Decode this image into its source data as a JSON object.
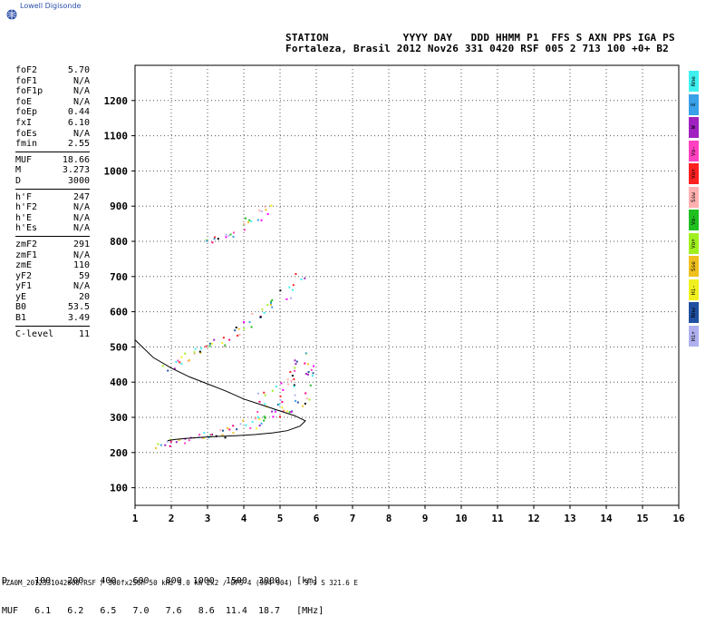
{
  "header": {
    "brand": "Lowell Digisonde",
    "line1": "STATION            YYYY DAY   DDD HHMM P1  FFS S AXN PPS IGA PS",
    "line2": "Fortaleza, Brasil 2012 Nov26 331 0420 RSF 005 2 713 100 +0+ B2"
  },
  "params": {
    "group1": [
      {
        "k": "foF2",
        "v": "5.70"
      },
      {
        "k": "foF1",
        "v": "N/A"
      },
      {
        "k": "foF1p",
        "v": "N/A"
      },
      {
        "k": "foE",
        "v": "N/A"
      },
      {
        "k": "foEp",
        "v": "0.44"
      },
      {
        "k": "fxI",
        "v": "6.10"
      },
      {
        "k": "foEs",
        "v": "N/A"
      },
      {
        "k": "fmin",
        "v": "2.55"
      }
    ],
    "group2": [
      {
        "k": "MUF",
        "v": "18.66"
      },
      {
        "k": "M",
        "v": "3.273"
      },
      {
        "k": "D",
        "v": "3000"
      }
    ],
    "group3": [
      {
        "k": "h'F",
        "v": "247"
      },
      {
        "k": "h'F2",
        "v": "N/A"
      },
      {
        "k": "h'E",
        "v": "N/A"
      },
      {
        "k": "h'Es",
        "v": "N/A"
      }
    ],
    "group4": [
      {
        "k": "zmF2",
        "v": "291"
      },
      {
        "k": "zmF1",
        "v": "N/A"
      },
      {
        "k": "zmE",
        "v": "110"
      },
      {
        "k": "yF2",
        "v": "59"
      },
      {
        "k": "yF1",
        "v": "N/A"
      },
      {
        "k": "yE",
        "v": "20"
      },
      {
        "k": "B0",
        "v": "53.5"
      },
      {
        "k": "B1",
        "v": "3.49"
      }
    ],
    "group5": [
      {
        "k": "C-level",
        "v": "11"
      }
    ]
  },
  "legend": [
    {
      "label": "Nne",
      "color": "#3ff0f0"
    },
    {
      "label": "E",
      "color": "#3aa0e8"
    },
    {
      "label": "W",
      "color": "#a020c0"
    },
    {
      "label": "Vo-",
      "color": "#ff40c0"
    },
    {
      "label": "Vo+",
      "color": "#ff2020"
    },
    {
      "label": "Ssw",
      "color": "#ffb0b0"
    },
    {
      "label": "Vo-",
      "color": "#20c020"
    },
    {
      "label": "Vo+",
      "color": "#a0f020"
    },
    {
      "label": "Sse",
      "color": "#f0c020"
    },
    {
      "label": "Hi-",
      "color": "#f0f020"
    },
    {
      "label": "Nnw",
      "color": "#2050a0"
    },
    {
      "label": "Hi+",
      "color": "#b0b0f0"
    }
  ],
  "muf_table": {
    "line1": "D     100   200   400   600   800  1000  1500  3000   [km]",
    "line2": "MUF   6.1   6.2   6.5   7.0   7.6   8.6  11.4  18.7   [MHz]"
  },
  "footer": "FZA0M_2012331042000.RSF / 300fx256h 50 kHz 5.0 km 2x2 / DPS-4 (904-904)   3.9 S 321.6 E",
  "chart_data": {
    "type": "scatter",
    "xlim": [
      1,
      16
    ],
    "ylim": [
      50,
      1300
    ],
    "xticks": [
      1,
      2,
      3,
      4,
      5,
      6,
      7,
      8,
      9,
      10,
      11,
      12,
      13,
      14,
      15,
      16
    ],
    "yticks": [
      100,
      200,
      300,
      400,
      500,
      600,
      700,
      800,
      900,
      1000,
      1100,
      1200
    ],
    "grid": true,
    "profile_curve": [
      [
        1.0,
        520
      ],
      [
        1.5,
        470
      ],
      [
        2.0,
        440
      ],
      [
        2.5,
        415
      ],
      [
        3.0,
        395
      ],
      [
        3.5,
        375
      ],
      [
        4.0,
        352
      ],
      [
        4.5,
        335
      ],
      [
        5.0,
        318
      ],
      [
        5.4,
        305
      ],
      [
        5.7,
        290
      ],
      [
        5.55,
        275
      ],
      [
        5.2,
        262
      ],
      [
        4.8,
        256
      ],
      [
        4.3,
        251
      ],
      [
        3.8,
        248
      ],
      [
        3.3,
        246
      ],
      [
        2.8,
        243
      ],
      [
        2.4,
        240
      ],
      [
        2.1,
        237
      ],
      [
        1.9,
        234
      ]
    ],
    "traces": [
      {
        "name": "F trace",
        "x": [
          1.7,
          1.9,
          2.1,
          2.3,
          2.5,
          2.7,
          2.9,
          3.1,
          3.3,
          3.5,
          3.7,
          3.9,
          4.1,
          4.3,
          4.5,
          4.7,
          4.9,
          5.1,
          5.3,
          5.5,
          5.7
        ],
        "y": [
          225,
          228,
          232,
          236,
          240,
          244,
          248,
          252,
          256,
          262,
          268,
          274,
          281,
          288,
          294,
          300,
          308,
          318,
          330,
          345,
          360
        ]
      },
      {
        "name": "F2 2nd hop",
        "x": [
          1.9,
          2.1,
          2.3,
          2.5,
          2.7,
          2.9,
          3.1,
          3.3,
          3.5,
          3.7,
          3.9,
          4.1,
          4.3,
          4.5,
          4.7,
          4.9,
          5.1,
          5.3,
          5.5
        ],
        "y": [
          445,
          455,
          465,
          475,
          485,
          495,
          505,
          515,
          525,
          540,
          555,
          570,
          585,
          600,
          615,
          630,
          650,
          675,
          700
        ]
      },
      {
        "name": "F2 3rd hop",
        "x": [
          3.1,
          3.3,
          3.5,
          3.7,
          3.9,
          4.1,
          4.3,
          4.5,
          4.7
        ],
        "y": [
          800,
          805,
          815,
          825,
          840,
          855,
          870,
          885,
          900
        ]
      },
      {
        "name": "Spread F",
        "x": [
          4.5,
          4.7,
          4.9,
          5.1,
          5.3,
          5.5,
          5.7,
          5.8
        ],
        "y": [
          320,
          340,
          360,
          380,
          400,
          420,
          440,
          470
        ]
      }
    ]
  }
}
